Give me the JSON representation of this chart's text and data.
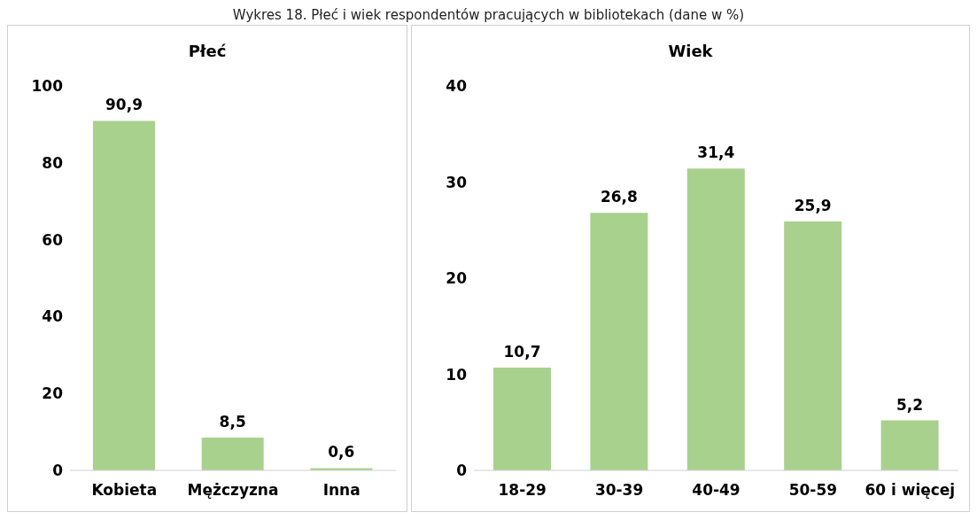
{
  "chart_data": [
    {
      "type": "bar",
      "title": "Płeć",
      "annotations": [
        "Wykres 18. Płeć i wiek respondentów pracujących w bibliotekach (dane w %)"
      ],
      "categories": [
        "Kobieta",
        "Mężczyzna",
        "Inna"
      ],
      "values": [
        90.9,
        8.5,
        0.6
      ],
      "value_labels": [
        "90,9",
        "8,5",
        "0,6"
      ],
      "color": "#a9d18e",
      "ylim": [
        0,
        100
      ],
      "yticks": [
        0,
        20,
        40,
        60,
        80,
        100
      ],
      "grid": false,
      "legend": false
    },
    {
      "type": "bar",
      "title": "Wiek",
      "categories": [
        "18-29",
        "30-39",
        "40-49",
        "50-59",
        "60 i więcej"
      ],
      "values": [
        10.7,
        26.8,
        31.4,
        25.9,
        5.2
      ],
      "value_labels": [
        "10,7",
        "26,8",
        "31,4",
        "25,9",
        "5,2"
      ],
      "color": "#a9d18e",
      "ylim": [
        0,
        40
      ],
      "yticks": [
        0,
        10,
        20,
        30,
        40
      ],
      "grid": false,
      "legend": false
    }
  ]
}
